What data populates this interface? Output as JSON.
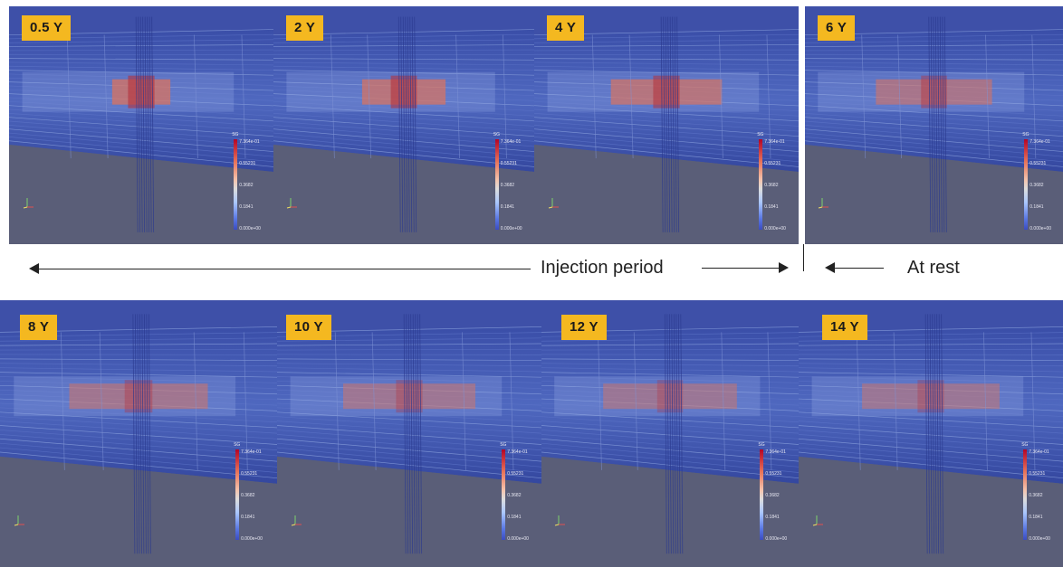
{
  "panels": [
    {
      "label": "0.5 Y"
    },
    {
      "label": "2 Y"
    },
    {
      "label": "4 Y"
    },
    {
      "label": "6 Y"
    },
    {
      "label": "8 Y"
    },
    {
      "label": "10 Y"
    },
    {
      "label": "12 Y"
    },
    {
      "label": "14 Y"
    }
  ],
  "colorbar": {
    "title": "SG",
    "ticks": [
      "7.364e-01",
      "0.55231",
      "0.3682",
      "0.1841",
      "0.000e+00"
    ],
    "colors": [
      "#b40426",
      "#f5c4ad",
      "#dddddd",
      "#5977e3",
      "#3b4cc0"
    ]
  },
  "captions": {
    "injection": "Injection period",
    "rest": "At rest"
  },
  "colors": {
    "badge": "#f4b820",
    "grid_blue": "#3b4fae",
    "plume": "#d9735f",
    "ground": "#5a5e78"
  }
}
